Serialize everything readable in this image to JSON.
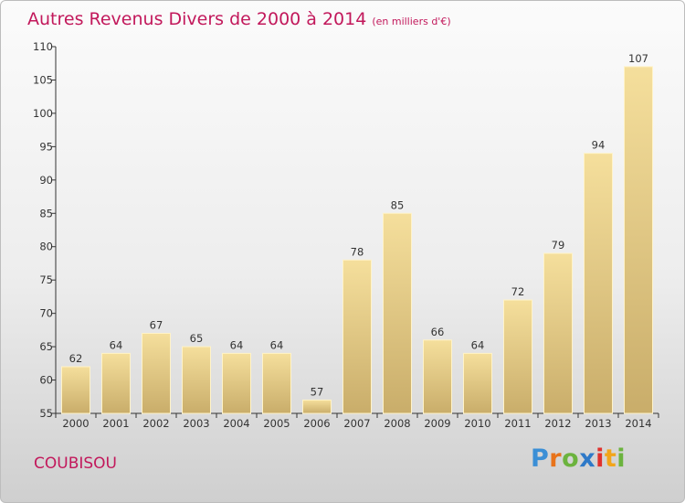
{
  "header": {
    "title": "Autres Revenus Divers de 2000 à 2014",
    "subtitle": "(en milliers d'€)"
  },
  "footer": {
    "commune": "COUBISOU",
    "logo_letters": [
      "P",
      "r",
      "o",
      "x",
      "i",
      "t",
      "i"
    ],
    "logo_colors": [
      "#3b8fd6",
      "#e8731a",
      "#6cb33e",
      "#2e79c8",
      "#e0312d",
      "#f2a51b",
      "#6cb33e"
    ]
  },
  "colors": {
    "title": "#c2185b",
    "bar_light": "#f5df9c",
    "bar_dark": "#c9ad6a",
    "axis": "#333333"
  },
  "chart_data": {
    "type": "bar",
    "title": "Autres Revenus Divers de 2000 à 2014",
    "subtitle": "(en milliers d'€)",
    "categories": [
      "2000",
      "2001",
      "2002",
      "2003",
      "2004",
      "2005",
      "2006",
      "2007",
      "2008",
      "2009",
      "2010",
      "2011",
      "2012",
      "2013",
      "2014"
    ],
    "values": [
      62,
      64,
      67,
      65,
      64,
      64,
      57,
      78,
      85,
      66,
      64,
      72,
      79,
      94,
      107
    ],
    "data_labels": [
      "62",
      "64",
      "67",
      "65",
      "64",
      "64",
      "57",
      "78",
      "85",
      "66",
      "64",
      "72",
      "79",
      "94",
      "107"
    ],
    "ylim": [
      55,
      110
    ],
    "yticks": [
      55,
      60,
      65,
      70,
      75,
      80,
      85,
      90,
      95,
      100,
      105,
      110
    ],
    "ytick_labels": [
      "55",
      "60",
      "65",
      "70",
      "75",
      "80",
      "85",
      "90",
      "95",
      "100",
      "105",
      "110"
    ],
    "grid": false,
    "legend": "none"
  }
}
